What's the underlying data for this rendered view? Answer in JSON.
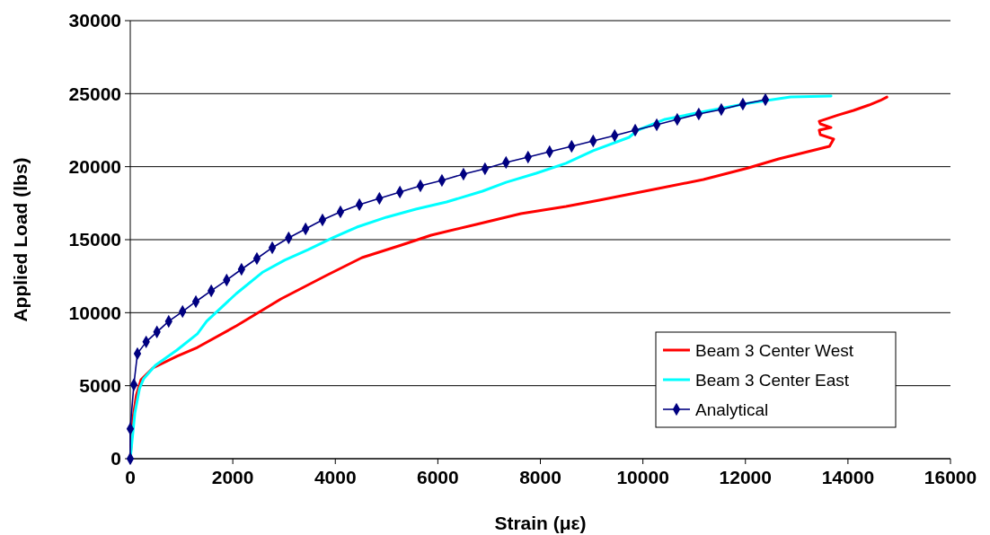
{
  "chart_data": {
    "type": "line",
    "xlabel": "Strain (με)",
    "ylabel": "Applied Load (lbs)",
    "xlim": [
      0,
      16000
    ],
    "xticks": [
      0,
      2000,
      4000,
      6000,
      8000,
      10000,
      12000,
      14000,
      16000
    ],
    "ylim": [
      0,
      30000
    ],
    "yticks": [
      0,
      5000,
      10000,
      15000,
      20000,
      25000,
      30000
    ],
    "grid": "y",
    "legend": "right",
    "series": [
      {
        "name": "Beam 3 Center West",
        "color": "#ff0000",
        "marker": "none",
        "x": [
          0,
          50,
          120,
          210,
          440,
          910,
          1310,
          2070,
          2940,
          3820,
          4520,
          5290,
          5870,
          6750,
          7620,
          8500,
          9150,
          10300,
          11180,
          12060,
          12650,
          13640,
          13720,
          13460,
          13440,
          13670,
          13460,
          13440,
          13810,
          14110,
          14410,
          14630,
          14760
        ],
        "values": [
          0,
          2700,
          4370,
          5410,
          6210,
          7010,
          7620,
          9100,
          10940,
          12540,
          13770,
          14630,
          15310,
          16050,
          16780,
          17270,
          17700,
          18500,
          19120,
          19920,
          20530,
          21390,
          21890,
          22190,
          22500,
          22680,
          22930,
          23110,
          23540,
          23850,
          24220,
          24530,
          24770
        ]
      },
      {
        "name": "Beam 3 Center East",
        "color": "#00ffff",
        "marker": "none",
        "x": [
          0,
          90,
          180,
          260,
          490,
          910,
          1310,
          1490,
          2070,
          2590,
          3010,
          3470,
          3940,
          4420,
          5000,
          5570,
          6170,
          6870,
          7330,
          7920,
          8500,
          9030,
          9730,
          9900,
          10430,
          11130,
          12060,
          12880,
          13670
        ],
        "values": [
          0,
          3140,
          4800,
          5470,
          6390,
          7440,
          8550,
          9410,
          11310,
          12790,
          13590,
          14320,
          15120,
          15860,
          16540,
          17090,
          17580,
          18320,
          18930,
          19550,
          20230,
          21090,
          22010,
          22500,
          23240,
          23730,
          24340,
          24770,
          24840
        ]
      },
      {
        "name": "Analytical",
        "color": "#000080",
        "marker": "diamond",
        "x": [
          0,
          0,
          70,
          140,
          310,
          520,
          750,
          1020,
          1280,
          1580,
          1880,
          2170,
          2470,
          2770,
          3090,
          3420,
          3750,
          4100,
          4470,
          4860,
          5260,
          5660,
          6080,
          6500,
          6920,
          7330,
          7760,
          8180,
          8610,
          9030,
          9450,
          9850,
          10270,
          10670,
          11090,
          11530,
          11950,
          12390
        ],
        "values": [
          0,
          2050,
          5070,
          7200,
          8000,
          8680,
          9410,
          10080,
          10760,
          11500,
          12230,
          12970,
          13710,
          14450,
          15120,
          15740,
          16350,
          16910,
          17400,
          17830,
          18260,
          18690,
          19060,
          19490,
          19860,
          20290,
          20660,
          21020,
          21390,
          21760,
          22130,
          22500,
          22870,
          23240,
          23610,
          23910,
          24280,
          24590
        ]
      }
    ]
  }
}
